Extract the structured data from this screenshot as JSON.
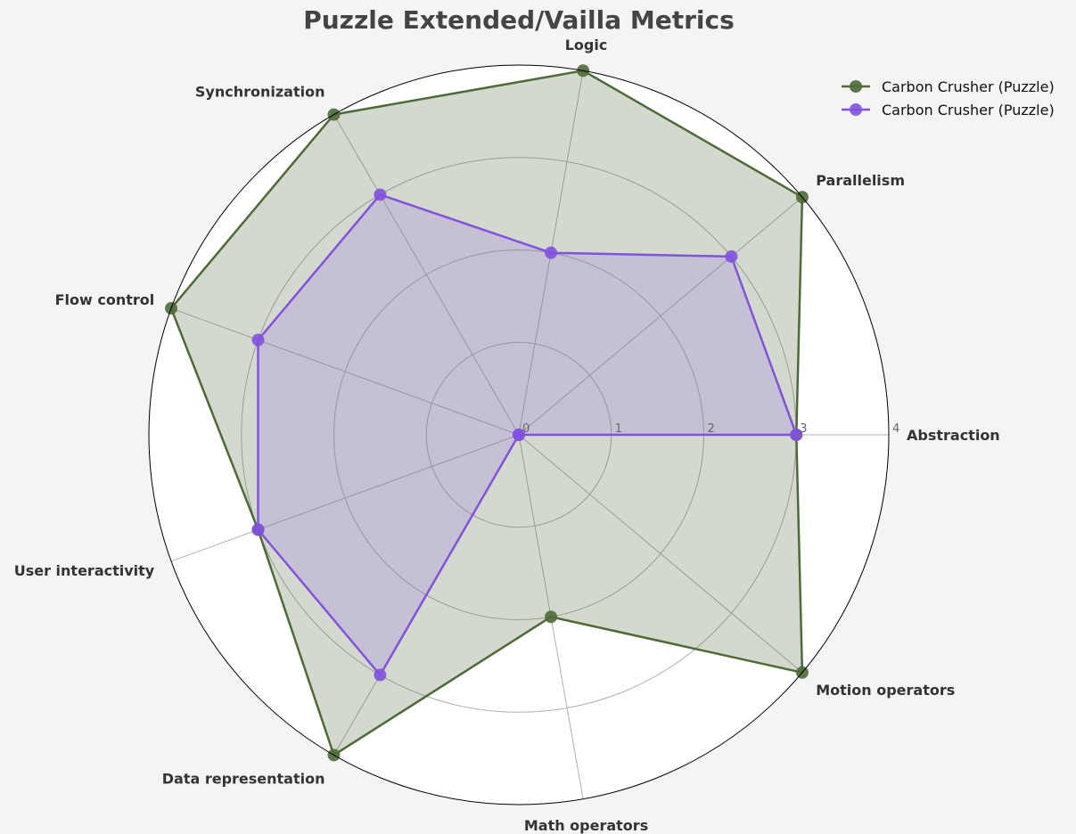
{
  "chart_data": {
    "type": "radar",
    "title": "Puzzle Extended/Vailla Metrics",
    "categories": [
      "Abstraction",
      "Parallelism",
      "Logic",
      "Synchronization",
      "Flow control",
      "User interactivity",
      "Data representation",
      "Math operators",
      "Motion operators"
    ],
    "rlim": [
      0,
      4
    ],
    "rticks": [
      0,
      1,
      2,
      3,
      4
    ],
    "grid": true,
    "legend_position": "top-right",
    "series": [
      {
        "name": "Carbon Crusher (Puzzle)",
        "color": "#4f6a38",
        "fill_color": "#4f6a38",
        "values": [
          3,
          4,
          4,
          4,
          4,
          3,
          4,
          2,
          4
        ]
      },
      {
        "name": "Carbon Crusher (Puzzle)",
        "color": "#8052e0",
        "fill_color": "#9b72e6",
        "values": [
          3,
          3,
          2,
          3,
          3,
          3,
          3,
          0,
          0
        ]
      }
    ]
  }
}
